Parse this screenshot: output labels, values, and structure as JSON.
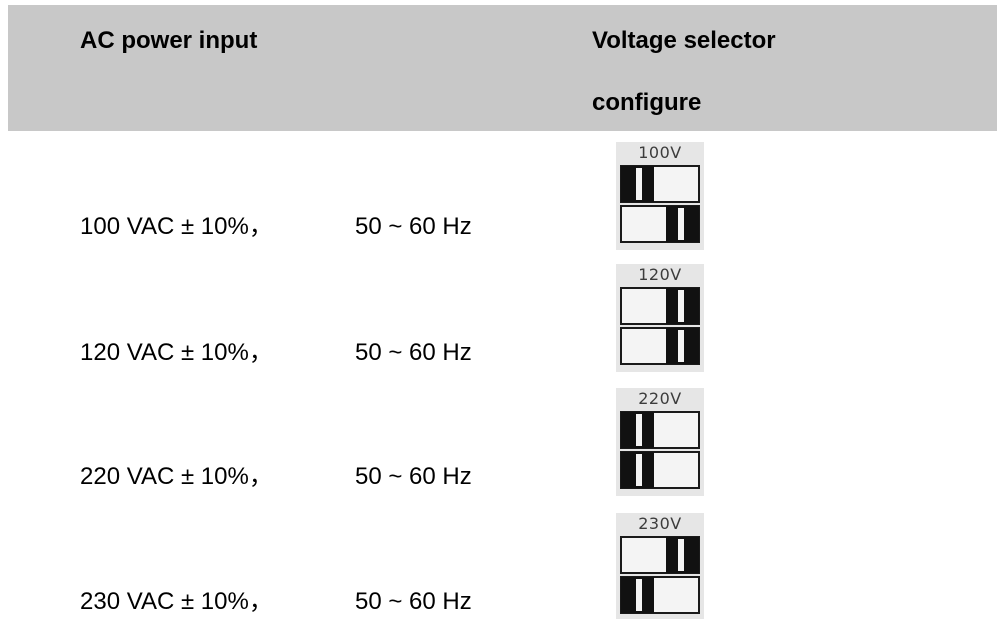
{
  "header": {
    "col1_title": "AC power input",
    "col2_title_line1": "Voltage selector",
    "col2_title_line2": "configure"
  },
  "rows": [
    {
      "voltage": "100 VAC ± 10%，",
      "frequency": "50 ~ 60 Hz",
      "selector_label": "100V",
      "switch_top": "left",
      "switch_bottom": "right"
    },
    {
      "voltage": "120 VAC ± 10%，",
      "frequency": "50 ~ 60 Hz",
      "selector_label": "120V",
      "switch_top": "right",
      "switch_bottom": "right"
    },
    {
      "voltage": "220 VAC ± 10%，",
      "frequency": "50 ~ 60 Hz",
      "selector_label": "220V",
      "switch_top": "left",
      "switch_bottom": "left"
    },
    {
      "voltage": "230 VAC ± 10%，",
      "frequency": "50 ~ 60 Hz",
      "selector_label": "230V",
      "switch_top": "right",
      "switch_bottom": "left"
    }
  ]
}
